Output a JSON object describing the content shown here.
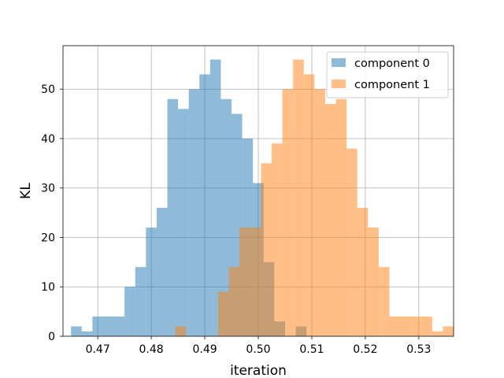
{
  "chart_data": {
    "type": "histogram",
    "xlabel": "iteration",
    "ylabel": "KL",
    "xlim": [
      0.4635,
      0.5365
    ],
    "ylim": [
      0,
      58.8
    ],
    "x_ticks": [
      0.47,
      0.48,
      0.49,
      0.5,
      0.51,
      0.52,
      0.53
    ],
    "x_tick_labels": [
      "0.47",
      "0.48",
      "0.49",
      "0.50",
      "0.51",
      "0.52",
      "0.53"
    ],
    "y_ticks": [
      0,
      10,
      20,
      30,
      40,
      50
    ],
    "y_tick_labels": [
      "0",
      "10",
      "20",
      "30",
      "40",
      "50"
    ],
    "grid": true,
    "legend_position": "top-right",
    "alpha": 0.5,
    "series": [
      {
        "name": "component 0",
        "color": "#1f77b4",
        "bin_start": 0.465,
        "bin_width": 0.002,
        "counts": [
          2,
          1,
          4,
          4,
          4,
          10,
          14,
          22,
          26,
          48,
          46,
          50,
          53,
          56,
          48,
          45,
          40,
          31,
          15,
          3,
          0,
          2
        ]
      },
      {
        "name": "component 1",
        "color": "#ff7f0e",
        "bin_start": 0.4845,
        "bin_width": 0.002,
        "counts": [
          2,
          0,
          0,
          0,
          9,
          14,
          22,
          22,
          35,
          39,
          50,
          56,
          53,
          50,
          47,
          48,
          38,
          26,
          22,
          14,
          4,
          4,
          4,
          4,
          1,
          2
        ]
      }
    ]
  }
}
